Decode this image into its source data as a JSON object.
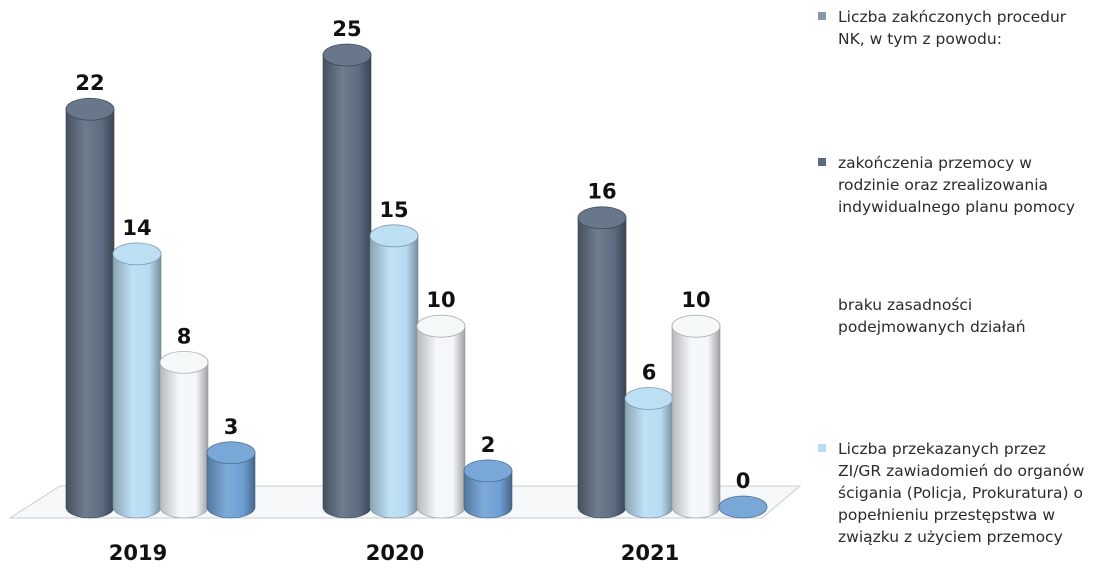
{
  "colors": {
    "s1": "#5c6b80",
    "s2": "#5e6f86",
    "s3": "#f4f7f9",
    "s4": "#b7dcf3",
    "s1_marker": "#8a96a6",
    "s2_marker": "#5c6b80",
    "s4_marker": "#b7dcf3"
  },
  "chart_data": {
    "type": "bar",
    "style": "3d-cylinder",
    "categories": [
      "2019",
      "2020",
      "2021"
    ],
    "series": [
      {
        "name": "Liczba zakńczonych procedur NK, w tym z powodu:",
        "values": [
          22,
          25,
          16
        ],
        "color": "#5c6b80"
      },
      {
        "name": "Liczba przekazanych przez ZI/GR zawiadomień do organów ścigania (Policja, Prokuratura) o popełnieniu przestępstwa w związku z użyciem przemocy",
        "values": [
          14,
          15,
          6
        ],
        "color": "#b7dcf3"
      },
      {
        "name": "braku zasadności podejmowanych działań",
        "values": [
          8,
          10,
          10
        ],
        "color": "#f4f7f9"
      },
      {
        "name": "",
        "values": [
          3,
          2,
          0
        ],
        "color": "#6d9fd4"
      }
    ],
    "legend": {
      "placement": "right",
      "entries": [
        {
          "text": "Liczba zakńczonych procedur NK, w tym z powodu:",
          "marker": "s1_marker"
        },
        {
          "text": "zakończenia przemocy w rodzinie oraz zrealizowania indywidualnego planu pomocy",
          "marker": "s2_marker"
        },
        {
          "text": "braku zasadności podejmowanych działań",
          "marker": "none"
        },
        {
          "text": "Liczba przekazanych przez ZI/GR zawiadomień do organów ścigania (Policja, Prokuratura) o popełnieniu przestępstwa w związku z użyciem przemocy",
          "marker": "s4_marker"
        }
      ]
    },
    "ylim": [
      0,
      25
    ],
    "grid": false
  }
}
